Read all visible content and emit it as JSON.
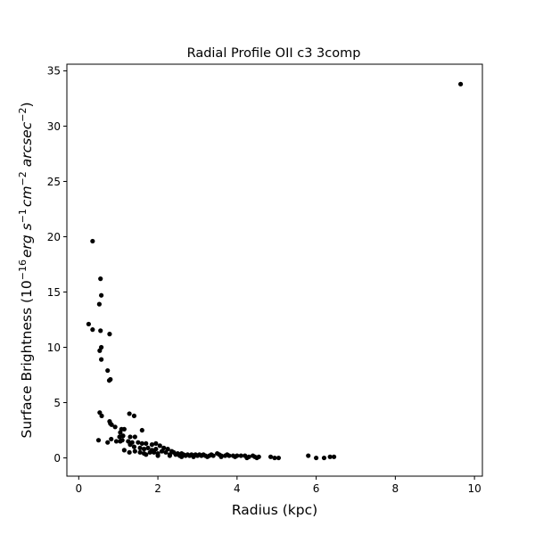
{
  "chart_data": {
    "type": "scatter",
    "title": "Radial Profile OII c3 3comp",
    "xlabel": "Radius (kpc)",
    "ylabel": {
      "prefix": "Surface Brightness (10",
      "exp1": "−16",
      "mid1": "erg s",
      "exp2": "−1",
      "mid2": "cm",
      "exp3": "−2",
      "mid3": " arcsec",
      "exp4": "−2",
      "suffix": ")"
    },
    "xlim": [
      -0.3,
      10.2
    ],
    "ylim": [
      -1.65,
      35.6
    ],
    "xticks": [
      0,
      2,
      4,
      6,
      8,
      10
    ],
    "yticks": [
      0,
      5,
      10,
      15,
      20,
      25,
      30,
      35
    ],
    "marker_color": "#000000",
    "grid": false,
    "points": [
      [
        9.65,
        33.8
      ],
      [
        0.35,
        19.6
      ],
      [
        0.55,
        16.2
      ],
      [
        0.57,
        14.7
      ],
      [
        0.52,
        13.9
      ],
      [
        0.25,
        12.1
      ],
      [
        0.35,
        11.6
      ],
      [
        0.55,
        11.5
      ],
      [
        0.78,
        11.2
      ],
      [
        0.57,
        10.0
      ],
      [
        0.53,
        9.7
      ],
      [
        0.57,
        8.9
      ],
      [
        0.73,
        7.9
      ],
      [
        0.8,
        7.1
      ],
      [
        0.77,
        7.0
      ],
      [
        0.53,
        4.1
      ],
      [
        0.58,
        3.8
      ],
      [
        1.28,
        4.0
      ],
      [
        1.4,
        3.8
      ],
      [
        0.78,
        3.3
      ],
      [
        0.8,
        3.1
      ],
      [
        0.83,
        3.0
      ],
      [
        0.92,
        2.8
      ],
      [
        1.08,
        2.6
      ],
      [
        1.15,
        2.6
      ],
      [
        1.05,
        2.3
      ],
      [
        1.6,
        2.5
      ],
      [
        1.12,
        2.0
      ],
      [
        1.03,
        1.9
      ],
      [
        1.3,
        1.9
      ],
      [
        1.42,
        1.9
      ],
      [
        0.5,
        1.6
      ],
      [
        0.73,
        1.4
      ],
      [
        0.82,
        1.7
      ],
      [
        0.95,
        1.5
      ],
      [
        1.05,
        1.5
      ],
      [
        1.1,
        1.6
      ],
      [
        1.25,
        1.5
      ],
      [
        1.35,
        1.4
      ],
      [
        1.5,
        1.4
      ],
      [
        1.6,
        1.3
      ],
      [
        1.7,
        1.3
      ],
      [
        1.85,
        1.2
      ],
      [
        1.95,
        1.3
      ],
      [
        2.05,
        1.1
      ],
      [
        2.15,
        0.9
      ],
      [
        1.3,
        1.2
      ],
      [
        1.4,
        1.0
      ],
      [
        1.55,
        0.9
      ],
      [
        1.65,
        0.8
      ],
      [
        1.75,
        0.9
      ],
      [
        1.85,
        0.7
      ],
      [
        1.95,
        0.8
      ],
      [
        2.1,
        0.6
      ],
      [
        2.25,
        0.8
      ],
      [
        2.35,
        0.6
      ],
      [
        1.15,
        0.7
      ],
      [
        1.28,
        0.5
      ],
      [
        1.42,
        0.6
      ],
      [
        1.55,
        0.5
      ],
      [
        1.65,
        0.4
      ],
      [
        1.8,
        0.5
      ],
      [
        1.9,
        0.5
      ],
      [
        2.0,
        0.4
      ],
      [
        2.2,
        0.5
      ],
      [
        2.3,
        0.3
      ],
      [
        2.4,
        0.5
      ],
      [
        2.5,
        0.4
      ],
      [
        1.7,
        0.3
      ],
      [
        2.0,
        0.2
      ],
      [
        2.3,
        0.2
      ],
      [
        2.45,
        0.3
      ],
      [
        2.55,
        0.2
      ],
      [
        2.6,
        0.4
      ],
      [
        2.65,
        0.3
      ],
      [
        2.7,
        0.2
      ],
      [
        2.75,
        0.3
      ],
      [
        2.8,
        0.2
      ],
      [
        2.85,
        0.3
      ],
      [
        2.9,
        0.2
      ],
      [
        2.95,
        0.3
      ],
      [
        3.0,
        0.2
      ],
      [
        3.05,
        0.3
      ],
      [
        3.1,
        0.2
      ],
      [
        3.15,
        0.3
      ],
      [
        3.2,
        0.2
      ],
      [
        3.3,
        0.2
      ],
      [
        3.35,
        0.3
      ],
      [
        3.4,
        0.2
      ],
      [
        3.5,
        0.4
      ],
      [
        3.55,
        0.3
      ],
      [
        3.6,
        0.2
      ],
      [
        3.7,
        0.2
      ],
      [
        3.75,
        0.3
      ],
      [
        3.8,
        0.2
      ],
      [
        3.9,
        0.2
      ],
      [
        4.0,
        0.2
      ],
      [
        4.1,
        0.2
      ],
      [
        4.2,
        0.2
      ],
      [
        4.3,
        0.1
      ],
      [
        4.4,
        0.2
      ],
      [
        4.45,
        0.1
      ],
      [
        4.55,
        0.1
      ],
      [
        2.6,
        0.1
      ],
      [
        2.9,
        0.1
      ],
      [
        3.25,
        0.1
      ],
      [
        3.6,
        0.1
      ],
      [
        3.95,
        0.1
      ],
      [
        4.25,
        0.0
      ],
      [
        4.5,
        0.0
      ],
      [
        4.85,
        0.1
      ],
      [
        4.95,
        0.0
      ],
      [
        5.05,
        0.0
      ],
      [
        5.8,
        0.2
      ],
      [
        6.0,
        0.0
      ],
      [
        6.2,
        0.0
      ],
      [
        6.35,
        0.1
      ],
      [
        6.45,
        0.1
      ]
    ]
  }
}
